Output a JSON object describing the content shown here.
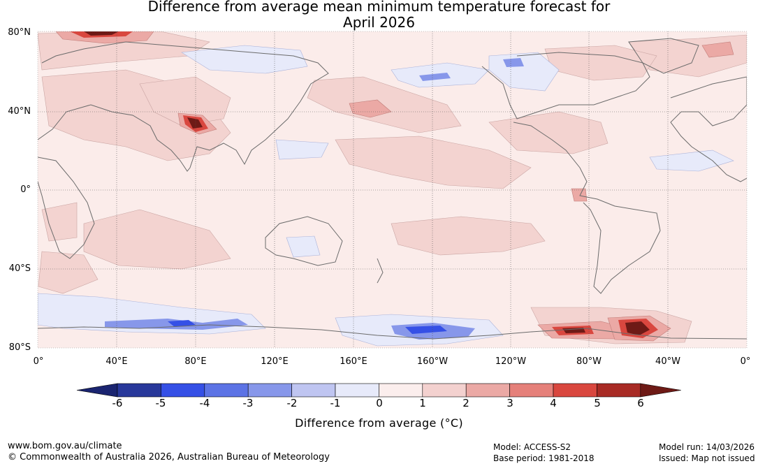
{
  "title": {
    "line1": "Difference from average mean minimum temperature forecast for",
    "line2": "April 2026"
  },
  "map": {
    "lat_labels": [
      "80°N",
      "40°N",
      "0°",
      "40°S",
      "80°S"
    ],
    "lon_labels": [
      "0°",
      "40°E",
      "80°E",
      "120°E",
      "160°E",
      "160°W",
      "120°W",
      "80°W",
      "40°W",
      "0°"
    ]
  },
  "colorbar": {
    "ticks": [
      "-6",
      "-5",
      "-4",
      "-3",
      "-2",
      "-1",
      "0",
      "1",
      "2",
      "3",
      "4",
      "5",
      "6"
    ],
    "colors": [
      "#28389a",
      "#3550e6",
      "#5c73e5",
      "#8797ea",
      "#bfc5f1",
      "#e7eafa",
      "#fbeeed",
      "#f3d1cf",
      "#eba9a5",
      "#e5807a",
      "#d9473f",
      "#a82b25"
    ],
    "under_color": "#1a2470",
    "over_color": "#6e1a16",
    "title": "Difference from average (°C)"
  },
  "footer": {
    "website": "www.bom.gov.au/climate",
    "copyright": "© Commonwealth of Australia 2026, Australian Bureau of Meteorology",
    "model": "Model: ACCESS-S2",
    "base_period": "Base period: 1981-2018",
    "model_run": "Model run: 14/03/2026",
    "issued": "Issued: Map not issued"
  }
}
